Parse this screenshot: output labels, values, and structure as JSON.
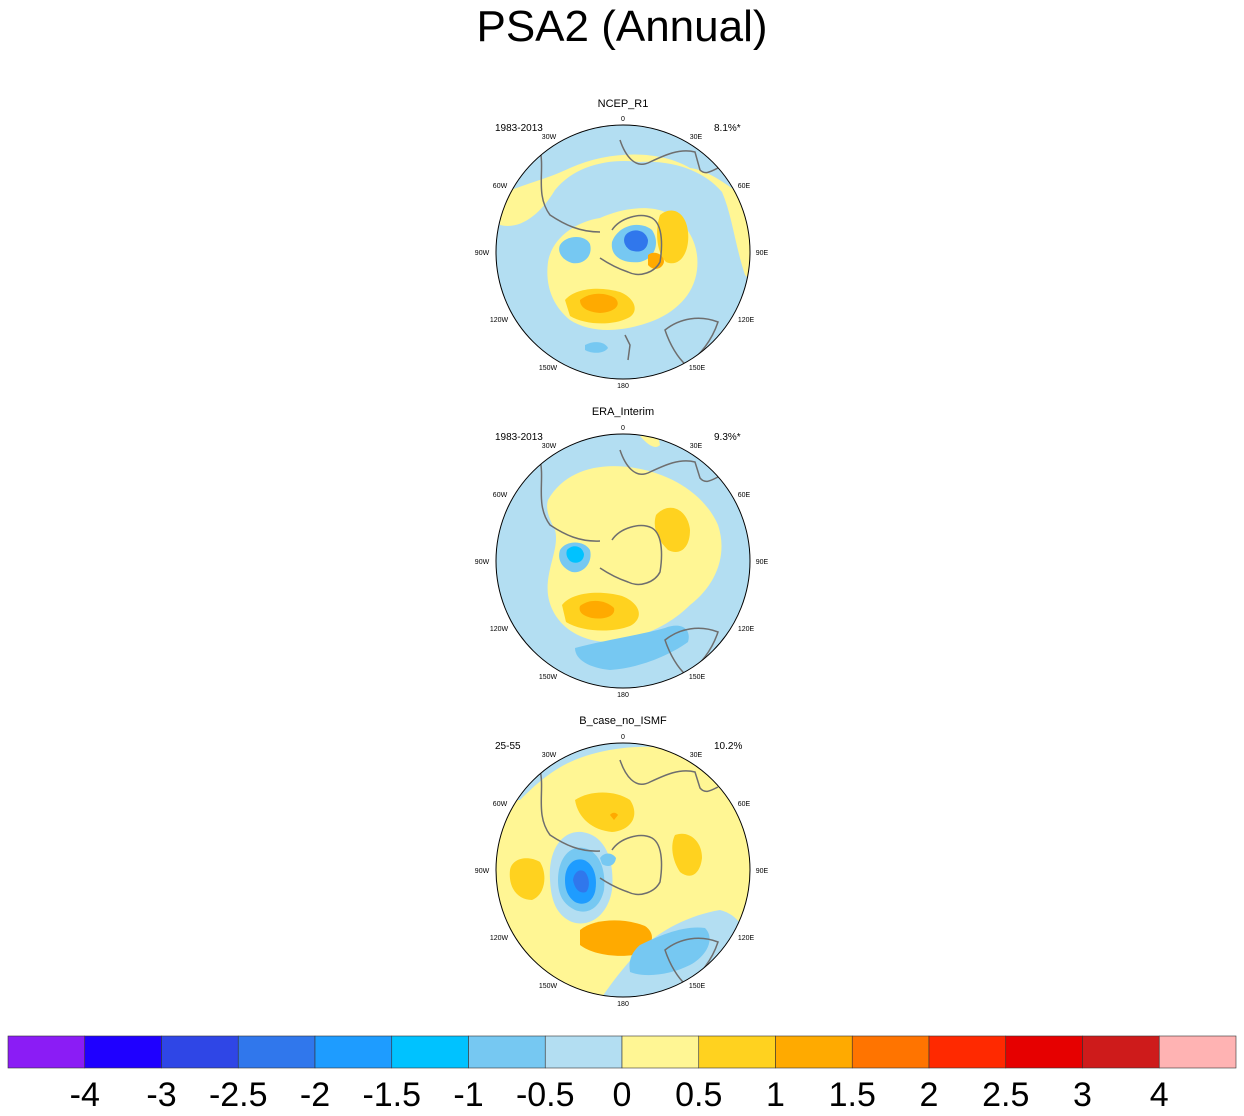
{
  "title": "PSA2 (Annual)",
  "longitude_labels": {
    "0": "0",
    "30E": "30E",
    "60E": "60E",
    "90E": "90E",
    "120E": "120E",
    "150E": "150E",
    "180": "180",
    "150W": "150W",
    "120W": "120W",
    "90W": "90W",
    "60W": "60W",
    "30W": "30W"
  },
  "panels": [
    {
      "name": "NCEP_R1",
      "period": "1983-2013",
      "variance": "8.1%*"
    },
    {
      "name": "ERA_Interim",
      "period": "1983-2013",
      "variance": "9.3%*"
    },
    {
      "name": "B_case_no_ISMF",
      "period": "25-55",
      "variance": "10.2%"
    }
  ],
  "colorbar": {
    "colors": [
      "#8b1cf5",
      "#1f00ff",
      "#2f46e6",
      "#3077ec",
      "#1e9cff",
      "#00c2ff",
      "#76c8f2",
      "#b3def2",
      "#fff694",
      "#ffd21f",
      "#ffaa00",
      "#ff7400",
      "#ff2900",
      "#e60000",
      "#ce1b1b",
      "#ffb3b3"
    ],
    "tick_labels": [
      "-4",
      "-3",
      "-2.5",
      "-2",
      "-1.5",
      "-1",
      "-0.5",
      "0",
      "0.5",
      "1",
      "1.5",
      "2",
      "2.5",
      "3",
      "4"
    ]
  },
  "icons": [
    "polar-stereographic-map"
  ]
}
